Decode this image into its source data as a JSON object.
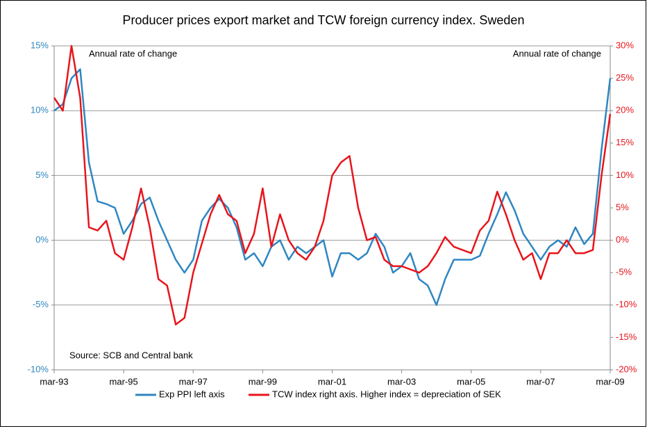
{
  "chart_data": {
    "type": "line",
    "title": "Producer prices export market and TCW foreign currency index. Sweden",
    "annotations": [
      "Annual rate of change",
      "Annual rate of change",
      "Source: SCB and Central bank"
    ],
    "categories": [
      "mar-93",
      null,
      null,
      null,
      null,
      null,
      null,
      null,
      "mar-95",
      null,
      null,
      null,
      null,
      null,
      null,
      null,
      "mar-97",
      null,
      null,
      null,
      null,
      null,
      null,
      null,
      "mar-99",
      null,
      null,
      null,
      null,
      null,
      null,
      null,
      "mar-01",
      null,
      null,
      null,
      null,
      null,
      null,
      null,
      "mar-03",
      null,
      null,
      null,
      null,
      null,
      null,
      null,
      "mar-05",
      null,
      null,
      null,
      null,
      null,
      null,
      null,
      "mar-07",
      null,
      null,
      null,
      null,
      null,
      null,
      null,
      "mar-09"
    ],
    "series": [
      {
        "name": "Exp PPI left axis",
        "color": "#2e86c1",
        "axis": "y",
        "values": [
          10,
          10.5,
          12.5,
          13.2,
          6,
          3,
          2.8,
          2.5,
          0.5,
          1.5,
          2.8,
          3.3,
          1.5,
          0,
          -1.5,
          -2.5,
          -1.5,
          1.5,
          2.5,
          3.2,
          2.5,
          1,
          -1.5,
          -1,
          -2,
          -0.5,
          0,
          -1.5,
          -0.5,
          -1,
          -0.5,
          0,
          -2.8,
          -1,
          -1,
          -1.5,
          -1,
          0.5,
          -0.5,
          -2.5,
          -2,
          -1,
          -3,
          -3.5,
          -5,
          -3,
          -1.5,
          -1.5,
          -1.5,
          -1.2,
          0.5,
          2,
          3.7,
          2.3,
          0.5,
          -0.5,
          -1.5,
          -0.5,
          0,
          -0.5,
          1,
          -0.3,
          0.5,
          7,
          12.5
        ]
      },
      {
        "name": "TCW index right axis. Higher index = depreciation of SEK",
        "color": "#e8141b",
        "axis": "y2",
        "values": [
          22,
          20,
          30,
          22,
          2,
          1.5,
          3,
          -2,
          -3,
          2,
          8,
          2,
          -6,
          -7,
          -13,
          -12,
          -5,
          -0.5,
          4,
          7,
          4,
          3,
          -2,
          1,
          8,
          -1,
          4,
          0,
          -2,
          -3,
          -1,
          3,
          10,
          12,
          13,
          5,
          0,
          0.5,
          -3,
          -4,
          -4,
          -4.5,
          -5,
          -4,
          -2,
          0.5,
          -1,
          -1.5,
          -2,
          1.5,
          3,
          7.5,
          4,
          0,
          -3,
          -2,
          -6,
          -2,
          -2,
          0,
          -2,
          -2,
          -1.5,
          10,
          19.5
        ]
      }
    ],
    "ylim": [
      -10,
      15
    ],
    "yticks": [
      {
        "value": -10,
        "label": "-10%"
      },
      {
        "value": -5,
        "label": "-5%"
      },
      {
        "value": 0,
        "label": "0%"
      },
      {
        "value": 5,
        "label": "5%"
      },
      {
        "value": 10,
        "label": "10%"
      },
      {
        "value": 15,
        "label": "15%"
      }
    ],
    "y2lim": [
      -20,
      30
    ],
    "y2ticks": [
      {
        "value": -20,
        "label": "-20%"
      },
      {
        "value": -15,
        "label": "-15%"
      },
      {
        "value": -10,
        "label": "-10%"
      },
      {
        "value": -5,
        "label": "-5%"
      },
      {
        "value": 0,
        "label": "0%"
      },
      {
        "value": 5,
        "label": "5%"
      },
      {
        "value": 10,
        "label": "10%"
      },
      {
        "value": 15,
        "label": "15%"
      },
      {
        "value": 20,
        "label": "20%"
      },
      {
        "value": 25,
        "label": "25%"
      },
      {
        "value": 30,
        "label": "30%"
      }
    ],
    "grid": true,
    "legend": "bottom"
  }
}
